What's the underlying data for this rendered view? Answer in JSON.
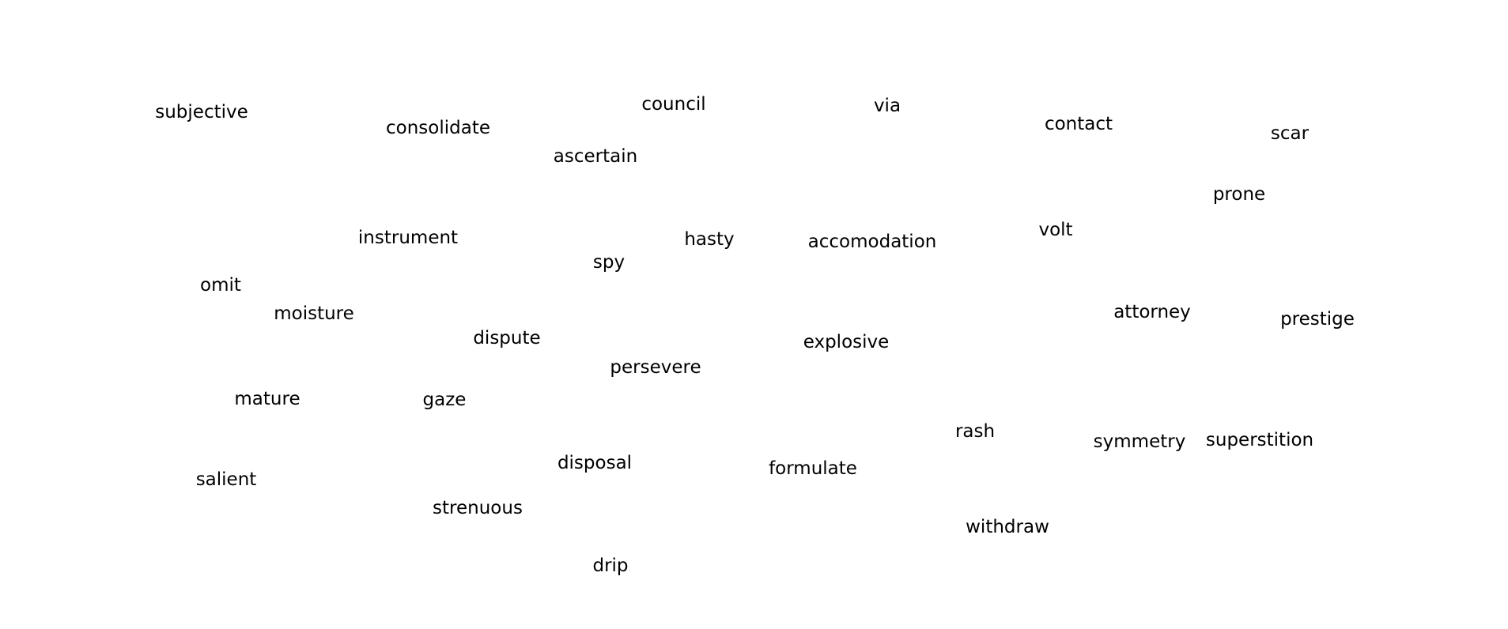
{
  "colors": {
    "background": "#ffffff",
    "text": "#000000"
  },
  "words": [
    "subjective",
    "consolidate",
    "council",
    "via",
    "contact",
    "scar",
    "ascertain",
    "prone",
    "instrument",
    "hasty",
    "accomodation",
    "volt",
    "spy",
    "omit",
    "moisture",
    "dispute",
    "explosive",
    "attorney",
    "prestige",
    "persevere",
    "mature",
    "gaze",
    "rash",
    "symmetry",
    "superstition",
    "disposal",
    "formulate",
    "salient",
    "strenuous",
    "withdraw",
    "drip"
  ]
}
